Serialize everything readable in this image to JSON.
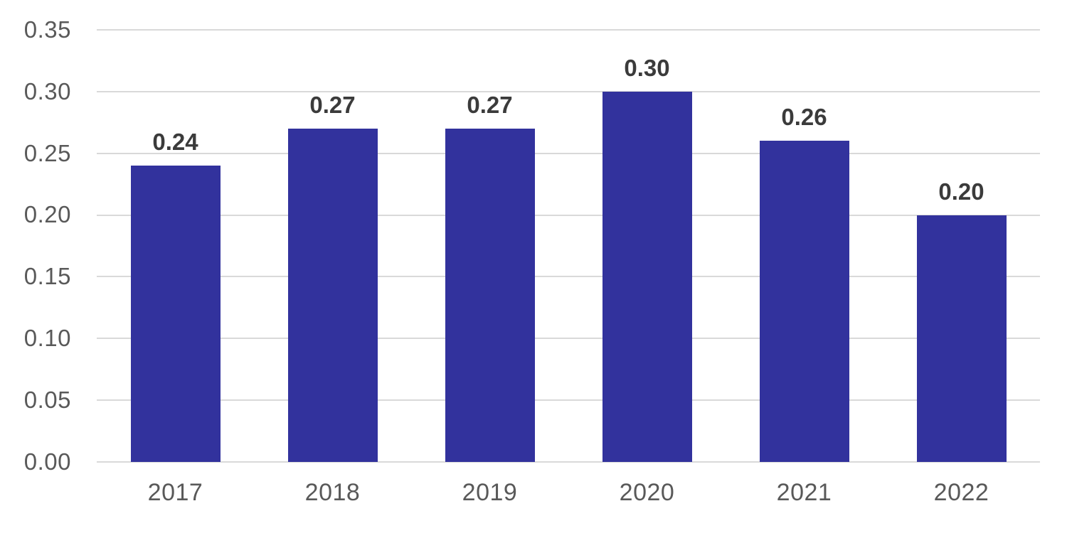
{
  "chart_data": {
    "type": "bar",
    "title": "",
    "xlabel": "",
    "ylabel": "",
    "categories": [
      "2017",
      "2018",
      "2019",
      "2020",
      "2021",
      "2022"
    ],
    "values": [
      0.24,
      0.27,
      0.27,
      0.3,
      0.26,
      0.2
    ],
    "data_labels": [
      "0.24",
      "0.27",
      "0.27",
      "0.30",
      "0.26",
      "0.20"
    ],
    "yticks": [
      "0.35",
      "0.30",
      "0.25",
      "0.20",
      "0.15",
      "0.10",
      "0.05",
      "0.00"
    ],
    "ylim": [
      0,
      0.35
    ],
    "ytick_step": 0.05,
    "grid": "horizontal gridlines on",
    "legend": "none",
    "colors": {
      "bar": "#32329d",
      "gridline": "#d9d9d9",
      "axis_text": "#595959",
      "data_label_text": "#3b3b3b"
    }
  }
}
